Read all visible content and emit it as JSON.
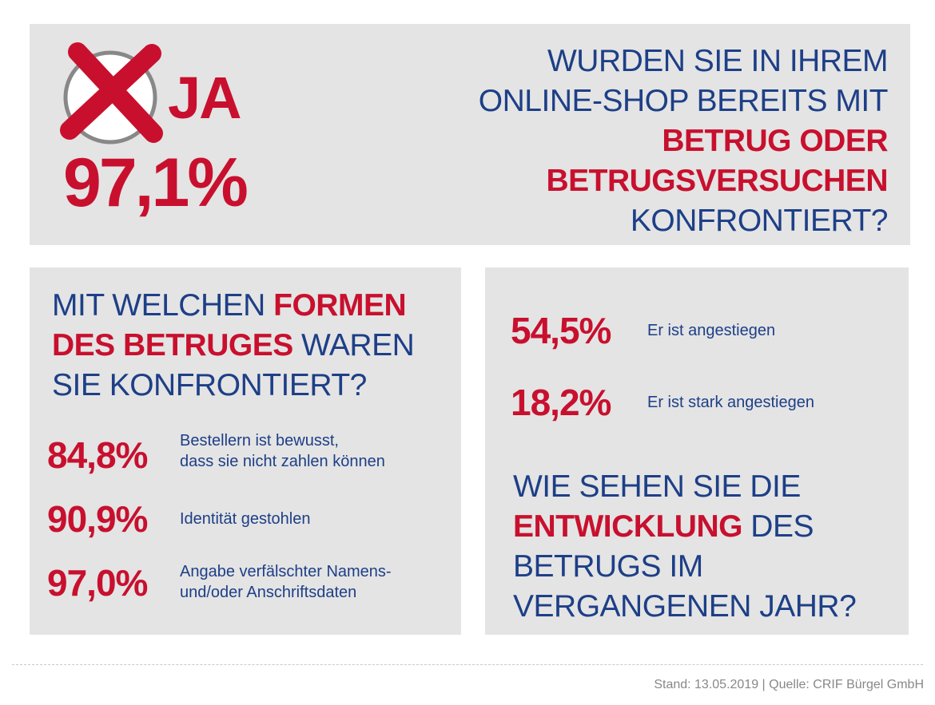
{
  "colors": {
    "red": "#c8102e",
    "blue": "#1d3f87",
    "panel": "#e4e4e4"
  },
  "top": {
    "icon": "checked-box-x-icon",
    "answer": "JA",
    "percent": "97,1%",
    "question": {
      "line1": "WURDEN SIE IN IHREM",
      "line2": "ONLINE-SHOP BEREITS MIT",
      "line3": "BETRUG ODER",
      "line4": "BETRUGSVERSUCHEN",
      "line5": "KONFRONTIERT?"
    }
  },
  "left": {
    "question": {
      "l1a": "MIT WELCHEN ",
      "l1b": "FORMEN",
      "l2a": "DES BETRUGES",
      "l2b": " WAREN",
      "l3": "SIE KONFRONTIERT?"
    },
    "stats": [
      {
        "percent": "84,8%",
        "line1": "Bestellern ist bewusst,",
        "line2": "dass sie nicht zahlen können"
      },
      {
        "percent": "90,9%",
        "line1": "Identität gestohlen",
        "line2": ""
      },
      {
        "percent": "97,0%",
        "line1": "Angabe verfälschter Namens-",
        "line2": "und/oder Anschriftsdaten"
      }
    ]
  },
  "right": {
    "stats": [
      {
        "percent": "54,5%",
        "label": "Er ist angestiegen"
      },
      {
        "percent": "18,2%",
        "label": "Er ist stark angestiegen"
      }
    ],
    "question": {
      "l1": "WIE SEHEN SIE DIE",
      "l2a": "ENTWICKLUNG",
      "l2b": " DES",
      "l3": "BETRUGS IM",
      "l4": "VERGANGENEN JAHR?"
    }
  },
  "footer": {
    "text": "Stand: 13.05.2019 | Quelle: CRIF Bürgel GmbH"
  }
}
